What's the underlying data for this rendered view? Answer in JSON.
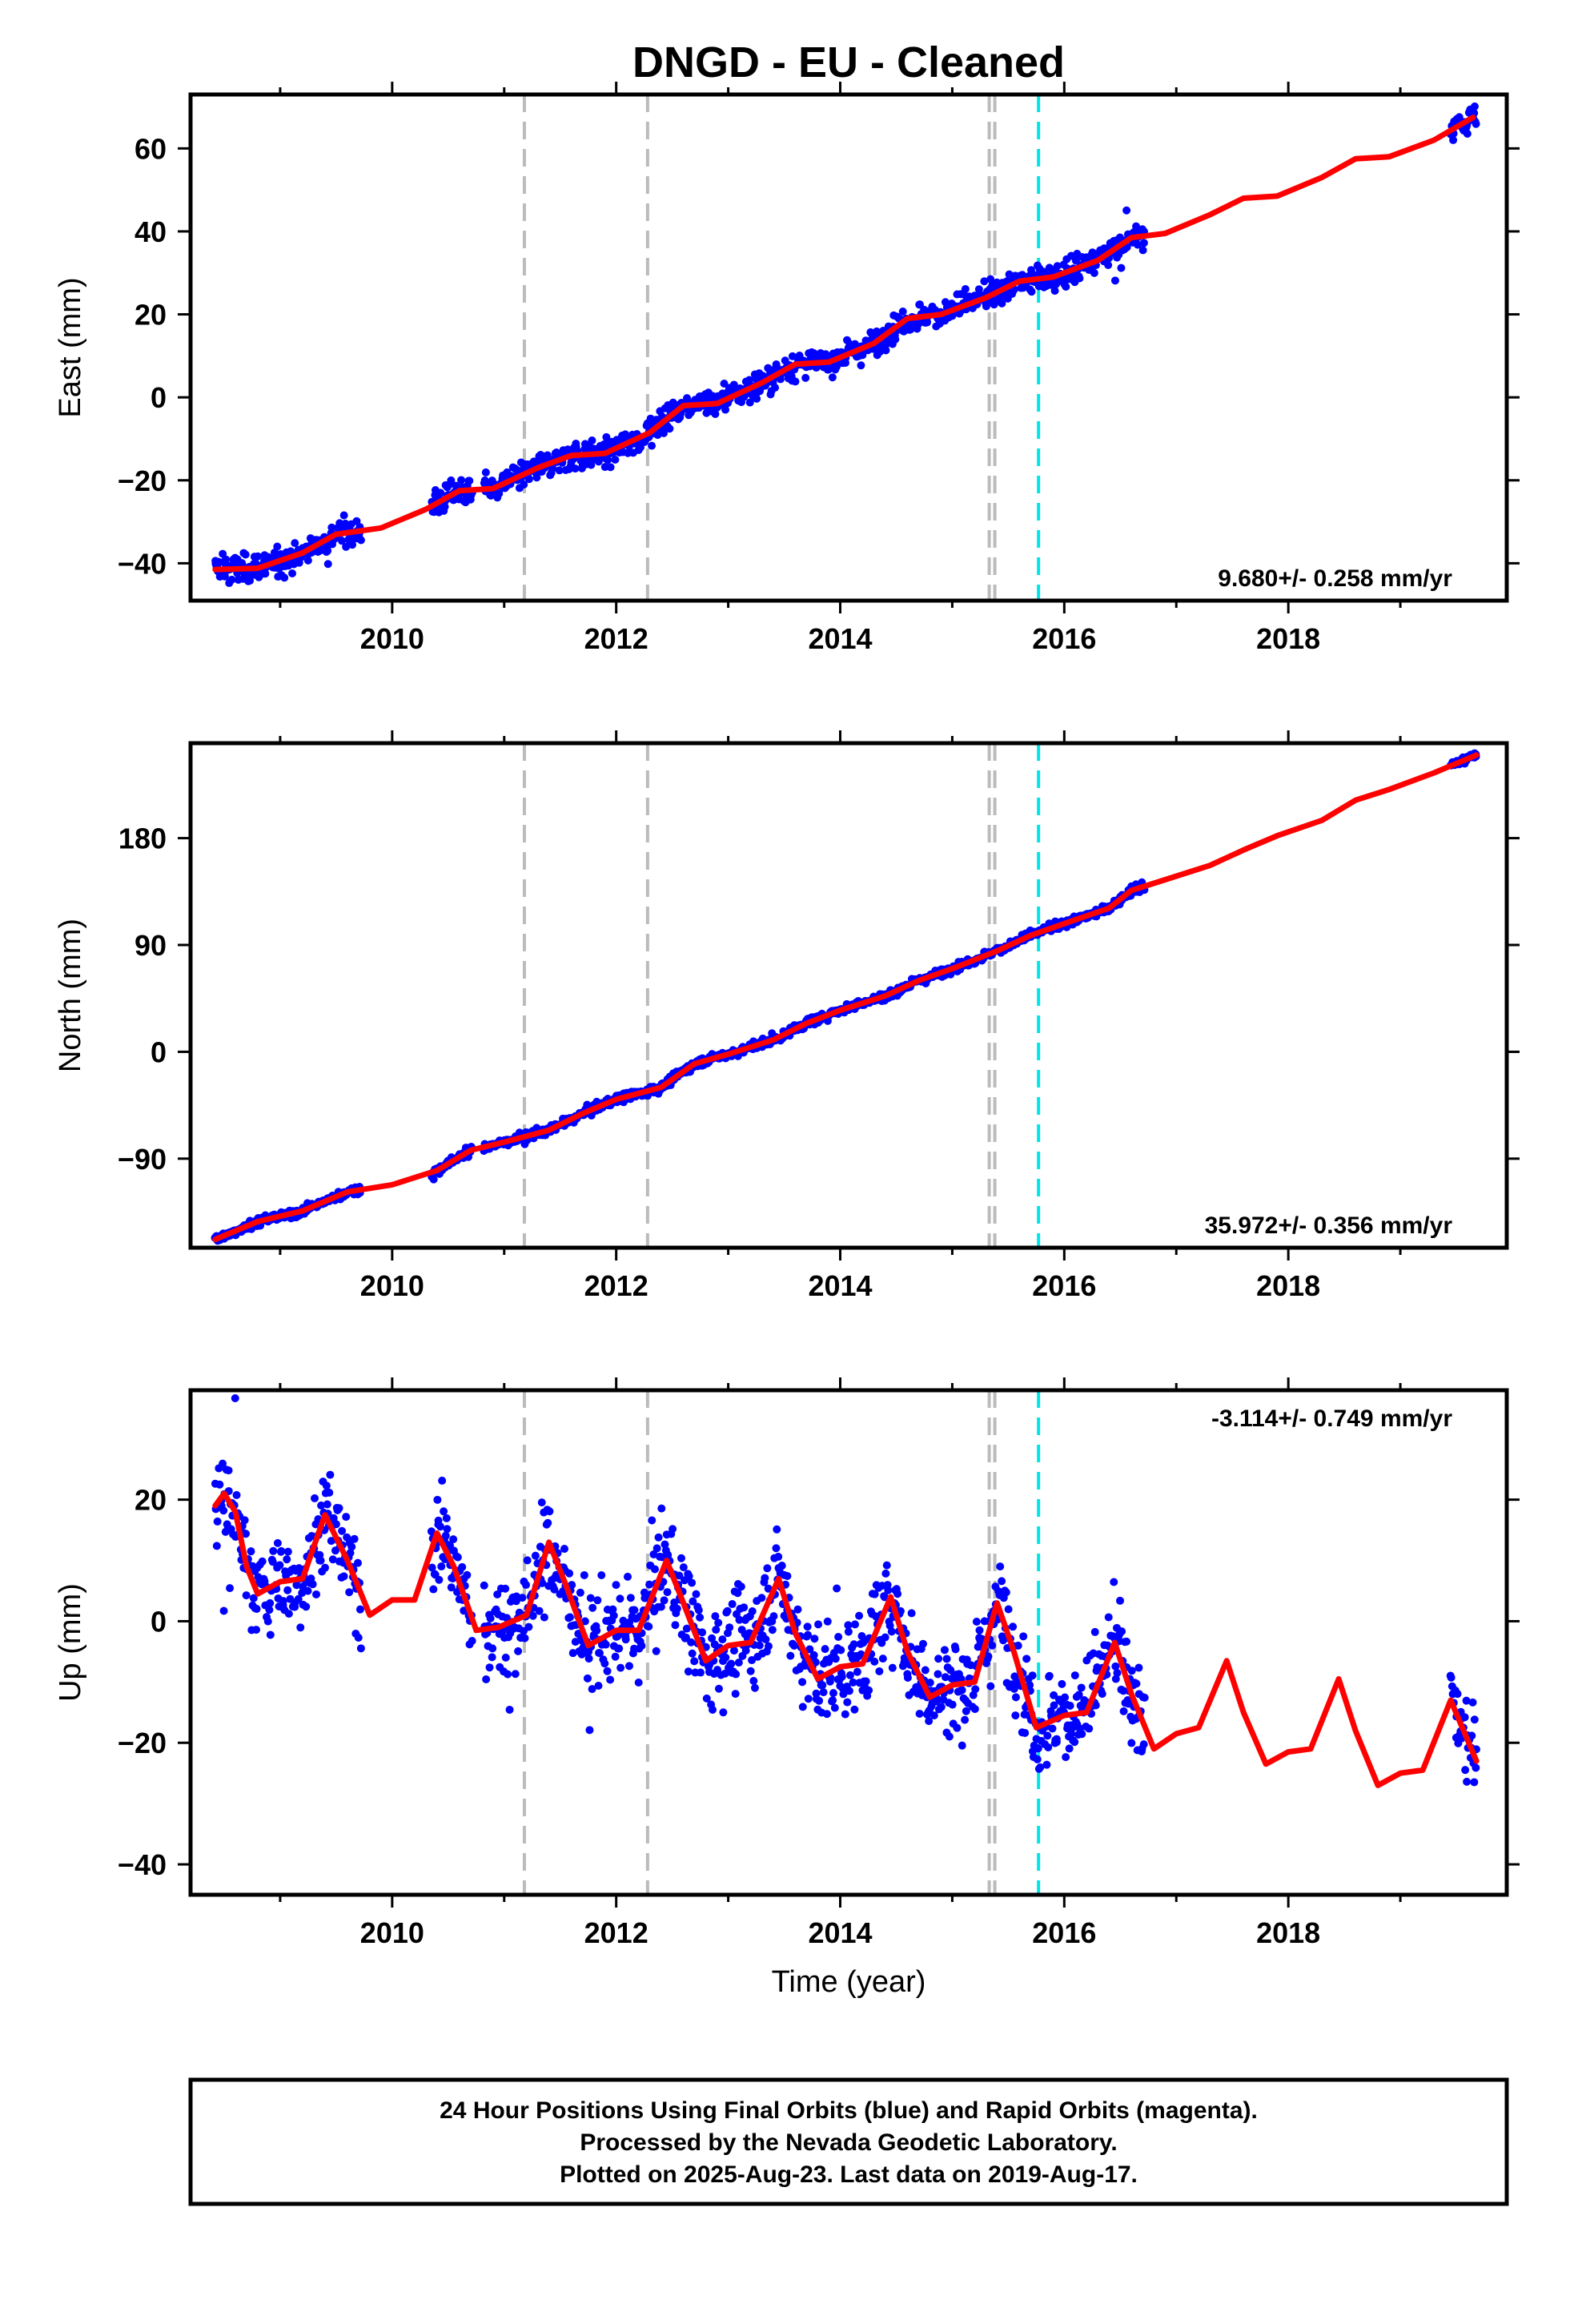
{
  "chart_data": {
    "type": "scatter",
    "title": "DNGD  - EU - Cleaned",
    "xlabel": "Time (year)",
    "x_ticks": [
      2010,
      2012,
      2014,
      2016,
      2018
    ],
    "xlim": [
      2008.2,
      2019.95
    ],
    "event_lines": {
      "gray": [
        2011.18,
        2012.28,
        2015.33,
        2015.38
      ],
      "cyan": [
        2015.77
      ]
    },
    "colors": {
      "data": "#0000ff",
      "model": "#ff0000",
      "gray_line": "#bbbbbb",
      "cyan_line": "#00e5e5"
    },
    "data_segments": [
      [
        2008.42,
        2009.72
      ],
      [
        2010.35,
        2010.72
      ],
      [
        2010.82,
        2016.72
      ],
      [
        2019.45,
        2019.68
      ]
    ],
    "panels": [
      {
        "id": "east",
        "ylabel": "East (mm)",
        "y_ticks": [
          -40,
          -20,
          0,
          20,
          40,
          60
        ],
        "ylim": [
          -49,
          73
        ],
        "rate_label": "9.680+/- 0.258 mm/yr",
        "model_curve": [
          [
            2008.42,
            -41.5
          ],
          [
            2008.8,
            -41.2
          ],
          [
            2009.2,
            -37.5
          ],
          [
            2009.5,
            -33
          ],
          [
            2009.9,
            -31.5
          ],
          [
            2010.3,
            -27
          ],
          [
            2010.6,
            -22.5
          ],
          [
            2010.9,
            -22
          ],
          [
            2011.3,
            -17
          ],
          [
            2011.6,
            -14
          ],
          [
            2011.9,
            -13.5
          ],
          [
            2012.3,
            -8.5
          ],
          [
            2012.6,
            -2
          ],
          [
            2012.9,
            -1.5
          ],
          [
            2013.3,
            3.5
          ],
          [
            2013.6,
            8
          ],
          [
            2013.9,
            8.5
          ],
          [
            2014.3,
            13
          ],
          [
            2014.6,
            19
          ],
          [
            2014.9,
            20
          ],
          [
            2015.3,
            24
          ],
          [
            2015.6,
            28
          ],
          [
            2015.9,
            29
          ],
          [
            2016.3,
            33
          ],
          [
            2016.6,
            38.5
          ],
          [
            2016.9,
            39.5
          ],
          [
            2017.3,
            44
          ],
          [
            2017.6,
            48
          ],
          [
            2017.9,
            48.5
          ],
          [
            2018.3,
            53
          ],
          [
            2018.6,
            57.5
          ],
          [
            2018.9,
            58
          ],
          [
            2019.3,
            62
          ],
          [
            2019.65,
            67.5
          ]
        ],
        "scatter_spread": 2.2
      },
      {
        "id": "north",
        "ylabel": "North (mm)",
        "y_ticks": [
          -90,
          0,
          90,
          180
        ],
        "ylim": [
          -165,
          260
        ],
        "rate_label": "35.972+/- 0.356 mm/yr",
        "model_curve": [
          [
            2008.42,
            -158
          ],
          [
            2008.8,
            -143
          ],
          [
            2009.2,
            -134
          ],
          [
            2009.6,
            -118
          ],
          [
            2010.0,
            -112
          ],
          [
            2010.4,
            -100
          ],
          [
            2010.7,
            -83
          ],
          [
            2011.0,
            -76
          ],
          [
            2011.4,
            -66
          ],
          [
            2011.7,
            -52
          ],
          [
            2012.0,
            -40
          ],
          [
            2012.4,
            -30
          ],
          [
            2012.7,
            -10
          ],
          [
            2013.0,
            -2
          ],
          [
            2013.4,
            10
          ],
          [
            2013.7,
            24
          ],
          [
            2014.0,
            35
          ],
          [
            2014.4,
            47
          ],
          [
            2014.7,
            60
          ],
          [
            2015.0,
            70
          ],
          [
            2015.4,
            85
          ],
          [
            2015.7,
            98
          ],
          [
            2016.0,
            108
          ],
          [
            2016.4,
            121
          ],
          [
            2016.6,
            136
          ],
          [
            2016.9,
            145
          ],
          [
            2017.3,
            157
          ],
          [
            2017.6,
            170
          ],
          [
            2017.9,
            182
          ],
          [
            2018.3,
            195
          ],
          [
            2018.6,
            212
          ],
          [
            2018.9,
            221
          ],
          [
            2019.3,
            235
          ],
          [
            2019.68,
            250
          ]
        ],
        "scatter_spread": 2.5
      },
      {
        "id": "up",
        "ylabel": "Up (mm)",
        "y_ticks": [
          -40,
          -20,
          0,
          20
        ],
        "ylim": [
          -45,
          38
        ],
        "rate_label": "-3.114+/- 0.749 mm/yr",
        "model_curve": [
          [
            2008.42,
            19
          ],
          [
            2008.5,
            21
          ],
          [
            2008.6,
            18
          ],
          [
            2008.7,
            9
          ],
          [
            2008.8,
            4.5
          ],
          [
            2009.0,
            6.5
          ],
          [
            2009.2,
            7
          ],
          [
            2009.4,
            17.5
          ],
          [
            2009.6,
            10
          ],
          [
            2009.8,
            1
          ],
          [
            2010.0,
            3.5
          ],
          [
            2010.2,
            3.5
          ],
          [
            2010.4,
            14.5
          ],
          [
            2010.55,
            9
          ],
          [
            2010.75,
            -1.5
          ],
          [
            2010.95,
            -1
          ],
          [
            2011.2,
            1
          ],
          [
            2011.4,
            13
          ],
          [
            2011.55,
            6
          ],
          [
            2011.75,
            -4
          ],
          [
            2012.0,
            -1.5
          ],
          [
            2012.2,
            -1.5
          ],
          [
            2012.45,
            10
          ],
          [
            2012.6,
            3
          ],
          [
            2012.8,
            -6.5
          ],
          [
            2013.0,
            -4
          ],
          [
            2013.2,
            -3.5
          ],
          [
            2013.45,
            7
          ],
          [
            2013.6,
            -2
          ],
          [
            2013.8,
            -9.5
          ],
          [
            2014.0,
            -7.5
          ],
          [
            2014.2,
            -7
          ],
          [
            2014.45,
            4
          ],
          [
            2014.6,
            -5
          ],
          [
            2014.8,
            -12.5
          ],
          [
            2015.0,
            -10.5
          ],
          [
            2015.2,
            -10
          ],
          [
            2015.4,
            3
          ],
          [
            2015.55,
            -5
          ],
          [
            2015.75,
            -17.5
          ],
          [
            2016.0,
            -15.5
          ],
          [
            2016.2,
            -15
          ],
          [
            2016.45,
            -3.5
          ],
          [
            2016.6,
            -12
          ],
          [
            2016.8,
            -21
          ],
          [
            2017.0,
            -18.5
          ],
          [
            2017.2,
            -17.5
          ],
          [
            2017.45,
            -6.5
          ],
          [
            2017.6,
            -15
          ],
          [
            2017.8,
            -23.5
          ],
          [
            2018.0,
            -21.5
          ],
          [
            2018.2,
            -21
          ],
          [
            2018.45,
            -9.5
          ],
          [
            2018.6,
            -18
          ],
          [
            2018.8,
            -27
          ],
          [
            2019.0,
            -25
          ],
          [
            2019.2,
            -24.5
          ],
          [
            2019.45,
            -13
          ],
          [
            2019.68,
            -23
          ]
        ],
        "scatter_spread": 5.5
      }
    ]
  },
  "footer": {
    "line1": "24 Hour Positions Using Final Orbits (blue) and Rapid Orbits (magenta).",
    "line2": "Processed by the Nevada Geodetic Laboratory.",
    "line3": "Plotted on 2025-Aug-23. Last data on 2019-Aug-17."
  }
}
